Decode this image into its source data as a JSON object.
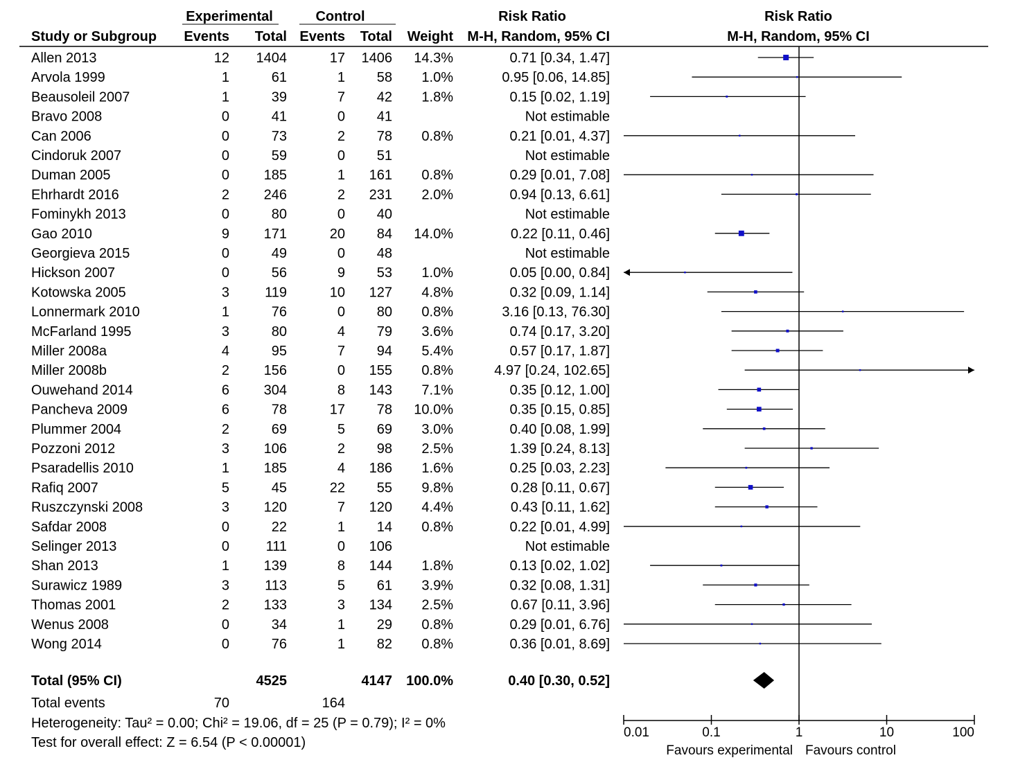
{
  "chart_data": {
    "type": "forest",
    "columns": {
      "group_experimental": "Experimental",
      "group_control": "Control",
      "study": "Study or Subgroup",
      "events": "Events",
      "total": "Total",
      "weight": "Weight",
      "rr_title": "Risk Ratio",
      "rr_method": "M-H, Random, 95% CI"
    },
    "plot_header": {
      "title": "Risk Ratio",
      "method": "M-H, Random, 95% CI"
    },
    "studies": [
      {
        "name": "Allen 2013",
        "exp_events": "12",
        "exp_total": "1404",
        "ctl_events": "17",
        "ctl_total": "1406",
        "weight": "14.3%",
        "ci_text": "0.71 [0.34, 1.47]",
        "rr": 0.71,
        "lo": 0.34,
        "hi": 1.47,
        "w": 14.3
      },
      {
        "name": "Arvola 1999",
        "exp_events": "1",
        "exp_total": "61",
        "ctl_events": "1",
        "ctl_total": "58",
        "weight": "1.0%",
        "ci_text": "0.95 [0.06, 14.85]",
        "rr": 0.95,
        "lo": 0.06,
        "hi": 14.85,
        "w": 1.0
      },
      {
        "name": "Beausoleil 2007",
        "exp_events": "1",
        "exp_total": "39",
        "ctl_events": "7",
        "ctl_total": "42",
        "weight": "1.8%",
        "ci_text": "0.15 [0.02, 1.19]",
        "rr": 0.15,
        "lo": 0.02,
        "hi": 1.19,
        "w": 1.8
      },
      {
        "name": "Bravo 2008",
        "exp_events": "0",
        "exp_total": "41",
        "ctl_events": "0",
        "ctl_total": "41",
        "weight": "",
        "ci_text": "Not estimable",
        "rr": null,
        "lo": null,
        "hi": null,
        "w": 0
      },
      {
        "name": "Can 2006",
        "exp_events": "0",
        "exp_total": "73",
        "ctl_events": "2",
        "ctl_total": "78",
        "weight": "0.8%",
        "ci_text": "0.21 [0.01, 4.37]",
        "rr": 0.21,
        "lo": 0.01,
        "hi": 4.37,
        "w": 0.8
      },
      {
        "name": "Cindoruk 2007",
        "exp_events": "0",
        "exp_total": "59",
        "ctl_events": "0",
        "ctl_total": "51",
        "weight": "",
        "ci_text": "Not estimable",
        "rr": null,
        "lo": null,
        "hi": null,
        "w": 0
      },
      {
        "name": "Duman 2005",
        "exp_events": "0",
        "exp_total": "185",
        "ctl_events": "1",
        "ctl_total": "161",
        "weight": "0.8%",
        "ci_text": "0.29 [0.01, 7.08]",
        "rr": 0.29,
        "lo": 0.01,
        "hi": 7.08,
        "w": 0.8
      },
      {
        "name": "Ehrhardt 2016",
        "exp_events": "2",
        "exp_total": "246",
        "ctl_events": "2",
        "ctl_total": "231",
        "weight": "2.0%",
        "ci_text": "0.94 [0.13, 6.61]",
        "rr": 0.94,
        "lo": 0.13,
        "hi": 6.61,
        "w": 2.0
      },
      {
        "name": "Fominykh 2013",
        "exp_events": "0",
        "exp_total": "80",
        "ctl_events": "0",
        "ctl_total": "40",
        "weight": "",
        "ci_text": "Not estimable",
        "rr": null,
        "lo": null,
        "hi": null,
        "w": 0
      },
      {
        "name": "Gao 2010",
        "exp_events": "9",
        "exp_total": "171",
        "ctl_events": "20",
        "ctl_total": "84",
        "weight": "14.0%",
        "ci_text": "0.22 [0.11, 0.46]",
        "rr": 0.22,
        "lo": 0.11,
        "hi": 0.46,
        "w": 14.0
      },
      {
        "name": "Georgieva 2015",
        "exp_events": "0",
        "exp_total": "49",
        "ctl_events": "0",
        "ctl_total": "48",
        "weight": "",
        "ci_text": "Not estimable",
        "rr": null,
        "lo": null,
        "hi": null,
        "w": 0
      },
      {
        "name": "Hickson 2007",
        "exp_events": "0",
        "exp_total": "56",
        "ctl_events": "9",
        "ctl_total": "53",
        "weight": "1.0%",
        "ci_text": "0.05 [0.00, 0.84]",
        "rr": 0.05,
        "lo": 0.0,
        "hi": 0.84,
        "w": 1.0
      },
      {
        "name": "Kotowska 2005",
        "exp_events": "3",
        "exp_total": "119",
        "ctl_events": "10",
        "ctl_total": "127",
        "weight": "4.8%",
        "ci_text": "0.32 [0.09, 1.14]",
        "rr": 0.32,
        "lo": 0.09,
        "hi": 1.14,
        "w": 4.8
      },
      {
        "name": "Lonnermark 2010",
        "exp_events": "1",
        "exp_total": "76",
        "ctl_events": "0",
        "ctl_total": "80",
        "weight": "0.8%",
        "ci_text": "3.16 [0.13, 76.30]",
        "rr": 3.16,
        "lo": 0.13,
        "hi": 76.3,
        "w": 0.8
      },
      {
        "name": "McFarland 1995",
        "exp_events": "3",
        "exp_total": "80",
        "ctl_events": "4",
        "ctl_total": "79",
        "weight": "3.6%",
        "ci_text": "0.74 [0.17, 3.20]",
        "rr": 0.74,
        "lo": 0.17,
        "hi": 3.2,
        "w": 3.6
      },
      {
        "name": "Miller 2008a",
        "exp_events": "4",
        "exp_total": "95",
        "ctl_events": "7",
        "ctl_total": "94",
        "weight": "5.4%",
        "ci_text": "0.57 [0.17, 1.87]",
        "rr": 0.57,
        "lo": 0.17,
        "hi": 1.87,
        "w": 5.4
      },
      {
        "name": "Miller 2008b",
        "exp_events": "2",
        "exp_total": "156",
        "ctl_events": "0",
        "ctl_total": "155",
        "weight": "0.8%",
        "ci_text": "4.97 [0.24, 102.65]",
        "rr": 4.97,
        "lo": 0.24,
        "hi": 102.65,
        "w": 0.8
      },
      {
        "name": "Ouwehand 2014",
        "exp_events": "6",
        "exp_total": "304",
        "ctl_events": "8",
        "ctl_total": "143",
        "weight": "7.1%",
        "ci_text": "0.35 [0.12, 1.00]",
        "rr": 0.35,
        "lo": 0.12,
        "hi": 1.0,
        "w": 7.1
      },
      {
        "name": "Pancheva 2009",
        "exp_events": "6",
        "exp_total": "78",
        "ctl_events": "17",
        "ctl_total": "78",
        "weight": "10.0%",
        "ci_text": "0.35 [0.15, 0.85]",
        "rr": 0.35,
        "lo": 0.15,
        "hi": 0.85,
        "w": 10.0
      },
      {
        "name": "Plummer 2004",
        "exp_events": "2",
        "exp_total": "69",
        "ctl_events": "5",
        "ctl_total": "69",
        "weight": "3.0%",
        "ci_text": "0.40 [0.08, 1.99]",
        "rr": 0.4,
        "lo": 0.08,
        "hi": 1.99,
        "w": 3.0
      },
      {
        "name": "Pozzoni 2012",
        "exp_events": "3",
        "exp_total": "106",
        "ctl_events": "2",
        "ctl_total": "98",
        "weight": "2.5%",
        "ci_text": "1.39 [0.24, 8.13]",
        "rr": 1.39,
        "lo": 0.24,
        "hi": 8.13,
        "w": 2.5
      },
      {
        "name": "Psaradellis 2010",
        "exp_events": "1",
        "exp_total": "185",
        "ctl_events": "4",
        "ctl_total": "186",
        "weight": "1.6%",
        "ci_text": "0.25 [0.03, 2.23]",
        "rr": 0.25,
        "lo": 0.03,
        "hi": 2.23,
        "w": 1.6
      },
      {
        "name": "Rafiq 2007",
        "exp_events": "5",
        "exp_total": "45",
        "ctl_events": "22",
        "ctl_total": "55",
        "weight": "9.8%",
        "ci_text": "0.28 [0.11, 0.67]",
        "rr": 0.28,
        "lo": 0.11,
        "hi": 0.67,
        "w": 9.8
      },
      {
        "name": "Ruszczynski 2008",
        "exp_events": "3",
        "exp_total": "120",
        "ctl_events": "7",
        "ctl_total": "120",
        "weight": "4.4%",
        "ci_text": "0.43 [0.11, 1.62]",
        "rr": 0.43,
        "lo": 0.11,
        "hi": 1.62,
        "w": 4.4
      },
      {
        "name": "Safdar 2008",
        "exp_events": "0",
        "exp_total": "22",
        "ctl_events": "1",
        "ctl_total": "14",
        "weight": "0.8%",
        "ci_text": "0.22 [0.01, 4.99]",
        "rr": 0.22,
        "lo": 0.01,
        "hi": 4.99,
        "w": 0.8
      },
      {
        "name": "Selinger 2013",
        "exp_events": "0",
        "exp_total": "111",
        "ctl_events": "0",
        "ctl_total": "106",
        "weight": "",
        "ci_text": "Not estimable",
        "rr": null,
        "lo": null,
        "hi": null,
        "w": 0
      },
      {
        "name": "Shan 2013",
        "exp_events": "1",
        "exp_total": "139",
        "ctl_events": "8",
        "ctl_total": "144",
        "weight": "1.8%",
        "ci_text": "0.13 [0.02, 1.02]",
        "rr": 0.13,
        "lo": 0.02,
        "hi": 1.02,
        "w": 1.8
      },
      {
        "name": "Surawicz 1989",
        "exp_events": "3",
        "exp_total": "113",
        "ctl_events": "5",
        "ctl_total": "61",
        "weight": "3.9%",
        "ci_text": "0.32 [0.08, 1.31]",
        "rr": 0.32,
        "lo": 0.08,
        "hi": 1.31,
        "w": 3.9
      },
      {
        "name": "Thomas 2001",
        "exp_events": "2",
        "exp_total": "133",
        "ctl_events": "3",
        "ctl_total": "134",
        "weight": "2.5%",
        "ci_text": "0.67 [0.11, 3.96]",
        "rr": 0.67,
        "lo": 0.11,
        "hi": 3.96,
        "w": 2.5
      },
      {
        "name": "Wenus 2008",
        "exp_events": "0",
        "exp_total": "34",
        "ctl_events": "1",
        "ctl_total": "29",
        "weight": "0.8%",
        "ci_text": "0.29 [0.01, 6.76]",
        "rr": 0.29,
        "lo": 0.01,
        "hi": 6.76,
        "w": 0.8
      },
      {
        "name": "Wong 2014",
        "exp_events": "0",
        "exp_total": "76",
        "ctl_events": "1",
        "ctl_total": "82",
        "weight": "0.8%",
        "ci_text": "0.36 [0.01, 8.69]",
        "rr": 0.36,
        "lo": 0.01,
        "hi": 8.69,
        "w": 0.8
      }
    ],
    "total": {
      "label": "Total (95% CI)",
      "exp_total": "4525",
      "ctl_total": "4147",
      "weight": "100.0%",
      "ci_text": "0.40 [0.30, 0.52]",
      "rr": 0.4,
      "lo": 0.3,
      "hi": 0.52
    },
    "total_events": {
      "label": "Total events",
      "exp": "70",
      "ctl": "164"
    },
    "heterogeneity": "Heterogeneity: Tau² = 0.00; Chi² = 19.06, df = 25 (P = 0.79); I² = 0%",
    "overall_effect": "Test for overall effect: Z = 6.54 (P < 0.00001)",
    "x_axis": {
      "scale": "log",
      "range": [
        0.01,
        100
      ],
      "ticks": [
        0.01,
        0.1,
        1,
        10,
        100
      ],
      "tick_labels": [
        "0.01",
        "0.1",
        "1",
        "10",
        "100"
      ],
      "favours_left": "Favours experimental",
      "favours_right": "Favours control"
    },
    "colors": {
      "marker": "#1010c8",
      "text": "#000000",
      "diamond": "#000000"
    }
  }
}
